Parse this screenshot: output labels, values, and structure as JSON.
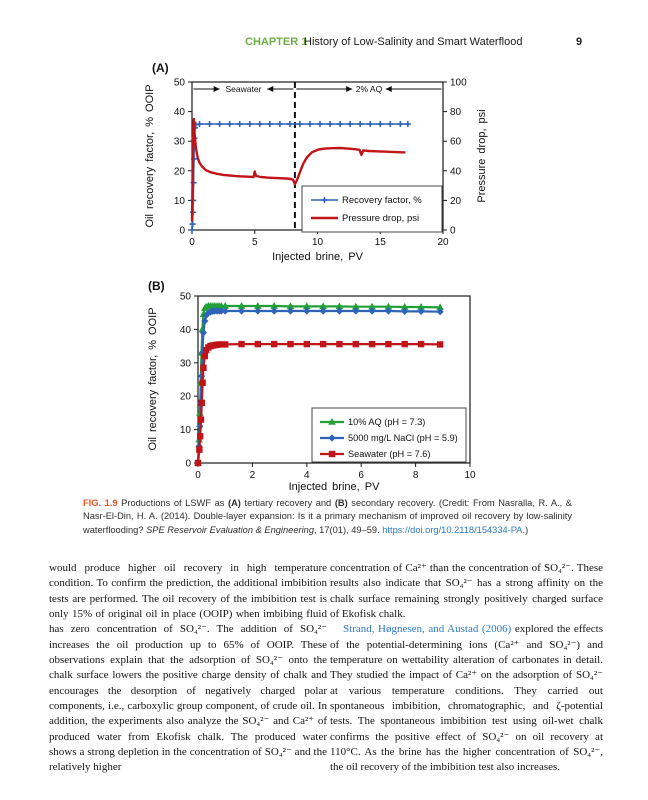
{
  "header": {
    "chapter_label": "CHAPTER 1",
    "chapter_title": "History of Low-Salinity and Smart Waterflood",
    "page_number": "9"
  },
  "colors": {
    "chapter_green": "#70AD47",
    "fig_orange": "#EB5424",
    "link_blue": "#2E7CC3",
    "chart_blue": "#2E63B8",
    "chart_red": "#C11419",
    "chart_green": "#21A038",
    "axis_black": "#1a1a1a"
  },
  "chart_data": [
    {
      "id": "chartA",
      "type": "line",
      "panel_label": "(A)",
      "xlabel": "Injected brine, PV",
      "ylabel_left": "Oil recovery factor, % OOIP",
      "ylabel_right": "Pressure drop, psi",
      "xlim": [
        0,
        20
      ],
      "xticks": [
        0,
        5,
        10,
        15,
        20
      ],
      "ylim_left": [
        0,
        50
      ],
      "yticks_left": [
        0,
        10,
        20,
        30,
        40,
        50
      ],
      "ylim_right": [
        0,
        100
      ],
      "yticks_right": [
        0,
        20,
        40,
        60,
        80,
        100
      ],
      "dashed_line_x": 8.2,
      "annotations": [
        {
          "label": "Seawater",
          "from": 0,
          "to": 8.2
        },
        {
          "label": "2% AQ",
          "from": 8.2,
          "to": 20
        }
      ],
      "series": [
        {
          "name": "Recovery factor, %",
          "color": "#2E63B8",
          "axis": "left",
          "marker": "plus",
          "width": 1.5,
          "points": [
            [
              0,
              0
            ],
            [
              0.05,
              2
            ],
            [
              0.08,
              6
            ],
            [
              0.1,
              10
            ],
            [
              0.13,
              16
            ],
            [
              0.16,
              24
            ],
            [
              0.2,
              31
            ],
            [
              0.25,
              34.5
            ],
            [
              0.3,
              35.6
            ],
            [
              0.6,
              35.8
            ],
            [
              1.4,
              35.8
            ],
            [
              2.2,
              35.8
            ],
            [
              3.0,
              35.8
            ],
            [
              3.8,
              35.8
            ],
            [
              4.6,
              35.8
            ],
            [
              5.4,
              35.8
            ],
            [
              6.2,
              35.8
            ],
            [
              7.0,
              35.8
            ],
            [
              7.8,
              35.8
            ],
            [
              8.6,
              35.8
            ],
            [
              9.4,
              35.8
            ],
            [
              10.2,
              35.8
            ],
            [
              11.0,
              35.8
            ],
            [
              11.8,
              35.8
            ],
            [
              12.6,
              35.8
            ],
            [
              13.4,
              35.8
            ],
            [
              14.2,
              35.8
            ],
            [
              15.0,
              35.8
            ],
            [
              15.8,
              35.8
            ],
            [
              16.6,
              35.8
            ],
            [
              17.2,
              35.8
            ]
          ]
        },
        {
          "name": "Pressure drop, psi",
          "color": "#C11419",
          "axis": "right",
          "marker": "none",
          "width": 2.4,
          "points": [
            [
              0,
              6
            ],
            [
              0.04,
              28
            ],
            [
              0.08,
              55
            ],
            [
              0.12,
              72
            ],
            [
              0.15,
              75
            ],
            [
              0.2,
              66
            ],
            [
              0.3,
              56
            ],
            [
              0.45,
              49
            ],
            [
              0.6,
              45.5
            ],
            [
              0.8,
              43
            ],
            [
              1.1,
              40.5
            ],
            [
              1.5,
              39
            ],
            [
              2,
              38
            ],
            [
              2.5,
              37.2
            ],
            [
              3,
              36.8
            ],
            [
              3.5,
              36.4
            ],
            [
              4,
              36.2
            ],
            [
              4.5,
              36
            ],
            [
              4.9,
              35.8
            ],
            [
              5,
              39.5
            ],
            [
              5.1,
              36.5
            ],
            [
              5.5,
              35.8
            ],
            [
              6,
              35.4
            ],
            [
              6.5,
              35.2
            ],
            [
              7,
              35
            ],
            [
              7.5,
              34.8
            ],
            [
              7.8,
              34.6
            ],
            [
              8.05,
              34
            ],
            [
              8.2,
              31
            ],
            [
              8.35,
              33.5
            ],
            [
              8.6,
              39
            ],
            [
              8.85,
              44.5
            ],
            [
              9.15,
              49
            ],
            [
              9.55,
              52.5
            ],
            [
              10.05,
              54.3
            ],
            [
              10.6,
              55
            ],
            [
              11.2,
              55.3
            ],
            [
              11.8,
              55.4
            ],
            [
              12.4,
              55
            ],
            [
              13,
              54.6
            ],
            [
              13.35,
              54.2
            ],
            [
              13.5,
              50.8
            ],
            [
              13.65,
              53.8
            ],
            [
              14.1,
              53.4
            ],
            [
              14.7,
              53.2
            ],
            [
              15.3,
              53
            ],
            [
              15.9,
              52.8
            ],
            [
              16.5,
              52.6
            ],
            [
              17,
              52.4
            ]
          ]
        }
      ]
    },
    {
      "id": "chartB",
      "type": "line",
      "panel_label": "(B)",
      "xlabel": "Injected brine, PV",
      "ylabel_left": "Oil recovery factor, % OOIP",
      "xlim": [
        0,
        10
      ],
      "xticks": [
        0,
        2,
        4,
        6,
        8,
        10
      ],
      "ylim_left": [
        0,
        50
      ],
      "yticks_left": [
        0,
        10,
        20,
        30,
        40,
        50
      ],
      "series": [
        {
          "name": "10% AQ (pH = 7.3)",
          "color": "#21A038",
          "axis": "left",
          "marker": "triangle",
          "width": 2.2,
          "points": [
            [
              0,
              0
            ],
            [
              0.04,
              7
            ],
            [
              0.07,
              15
            ],
            [
              0.1,
              24
            ],
            [
              0.13,
              33
            ],
            [
              0.16,
              40
            ],
            [
              0.2,
              44.5
            ],
            [
              0.25,
              46.3
            ],
            [
              0.3,
              46.8
            ],
            [
              0.38,
              47
            ],
            [
              0.46,
              47
            ],
            [
              0.54,
              47
            ],
            [
              0.62,
              47
            ],
            [
              0.7,
              47
            ],
            [
              0.78,
              47
            ],
            [
              0.86,
              47
            ],
            [
              1.0,
              47
            ],
            [
              1.6,
              47
            ],
            [
              2.2,
              47
            ],
            [
              2.8,
              47
            ],
            [
              3.4,
              46.9
            ],
            [
              4.0,
              46.9
            ],
            [
              4.6,
              46.9
            ],
            [
              5.2,
              46.9
            ],
            [
              5.8,
              46.8
            ],
            [
              6.4,
              46.8
            ],
            [
              7.0,
              46.8
            ],
            [
              7.6,
              46.7
            ],
            [
              8.2,
              46.7
            ],
            [
              8.9,
              46.6
            ]
          ]
        },
        {
          "name": "5000 mg/L NaCl (pH = 5.9)",
          "color": "#2E63B8",
          "axis": "left",
          "marker": "diamond",
          "width": 2.2,
          "points": [
            [
              0,
              0
            ],
            [
              0.04,
              5
            ],
            [
              0.07,
              11
            ],
            [
              0.1,
              18
            ],
            [
              0.13,
              26
            ],
            [
              0.16,
              33
            ],
            [
              0.2,
              39
            ],
            [
              0.25,
              42.5
            ],
            [
              0.3,
              44.2
            ],
            [
              0.38,
              44.9
            ],
            [
              0.46,
              45.2
            ],
            [
              0.54,
              45.4
            ],
            [
              0.62,
              45.5
            ],
            [
              0.7,
              45.5
            ],
            [
              0.78,
              45.5
            ],
            [
              0.86,
              45.5
            ],
            [
              1.0,
              45.5
            ],
            [
              1.6,
              45.5
            ],
            [
              2.2,
              45.5
            ],
            [
              2.8,
              45.5
            ],
            [
              3.4,
              45.5
            ],
            [
              4.0,
              45.5
            ],
            [
              4.6,
              45.5
            ],
            [
              5.2,
              45.5
            ],
            [
              5.8,
              45.5
            ],
            [
              6.4,
              45.5
            ],
            [
              7.0,
              45.5
            ],
            [
              7.6,
              45.4
            ],
            [
              8.2,
              45.4
            ],
            [
              8.9,
              45.3
            ]
          ]
        },
        {
          "name": "Seawater (pH = 7.6)",
          "color": "#C11419",
          "axis": "left",
          "marker": "square",
          "width": 2.2,
          "points": [
            [
              0,
              0
            ],
            [
              0.05,
              4
            ],
            [
              0.08,
              8
            ],
            [
              0.11,
              13
            ],
            [
              0.14,
              18
            ],
            [
              0.17,
              24
            ],
            [
              0.2,
              28.5
            ],
            [
              0.25,
              32
            ],
            [
              0.3,
              33.8
            ],
            [
              0.38,
              34.6
            ],
            [
              0.46,
              35
            ],
            [
              0.54,
              35.2
            ],
            [
              0.62,
              35.3
            ],
            [
              0.7,
              35.4
            ],
            [
              0.8,
              35.5
            ],
            [
              1.0,
              35.5
            ],
            [
              1.6,
              35.6
            ],
            [
              2.2,
              35.6
            ],
            [
              2.8,
              35.6
            ],
            [
              3.4,
              35.6
            ],
            [
              4.0,
              35.6
            ],
            [
              4.6,
              35.6
            ],
            [
              5.2,
              35.6
            ],
            [
              5.8,
              35.6
            ],
            [
              6.4,
              35.6
            ],
            [
              7.0,
              35.6
            ],
            [
              7.6,
              35.6
            ],
            [
              8.2,
              35.6
            ],
            [
              8.9,
              35.5
            ]
          ]
        }
      ]
    }
  ],
  "caption": {
    "segments": [
      {
        "text": "FIG. 1.9",
        "style": "fig-label"
      },
      {
        "text": "  Productions of LSWF as ",
        "style": ""
      },
      {
        "text": "(A)",
        "style": "bold"
      },
      {
        "text": " tertiary recovery and ",
        "style": ""
      },
      {
        "text": "(B)",
        "style": "bold"
      },
      {
        "text": " secondary recovery. (Credit: From Nasralla, R. A., & Nasr-El-Din, H. A. (2014). Double-layer expansion: Is it a primary mechanism of improved oil recovery by low-salinity waterflooding? ",
        "style": ""
      },
      {
        "text": "SPE Reservoir Evaluation & Engineering",
        "style": "italic"
      },
      {
        "text": ", 17(01), 49–59. ",
        "style": ""
      },
      {
        "text": "https://doi.org/10.2118/154334-PA",
        "style": "link"
      },
      {
        "text": ".)",
        "style": ""
      }
    ]
  },
  "body": {
    "left_column": [
      {
        "indent": false,
        "segments": [
          {
            "text": "would produce higher oil recovery in high temperature condition. To confirm the prediction, the additional imbibition tests are performed. The oil recovery of the imbibition test is only 15% of original oil in place (OOIP) when imbibing fluid has zero concentration of SO₄²⁻. The addition of SO₄²⁻ increases the oil production up to 65% of OOIP. These observations explain that the adsorption of SO₄²⁻ onto the chalk surface lowers the positive charge density of chalk and encourages the desorption of negatively charged polar components, i.e., carboxylic group component, of crude oil. In addition, the experiments also analyze the SO₄²⁻ and Ca²⁺ of produced water from Ekofisk chalk. The produced water shows a strong depletion in the concentration of SO₄²⁻ and the relatively higher",
            "style": ""
          }
        ]
      }
    ],
    "right_column": [
      {
        "indent": false,
        "segments": [
          {
            "text": "concentration of Ca²⁺ than the concentration of SO₄²⁻. These results also indicate that SO₄²⁻ has a strong affinity on the chalk surface remaining strongly positively charged surface of Ekofisk chalk.",
            "style": ""
          }
        ]
      },
      {
        "indent": true,
        "segments": [
          {
            "text": "Strand, Høgnesen, and Austad (2006)",
            "style": "link"
          },
          {
            "text": " explored the effects of the potential-determining ions (Ca²⁺ and SO₄²⁻) and temperature on wettability alteration of carbonates in detail. They studied the impact of Ca²⁺ on the adsorption of SO₄²⁻ at various temperature conditions. They carried out spontaneous imbibition, chromatographic, and ζ-potential tests. The spontaneous imbibition test using oil-wet chalk confirms the positive effect of SO₄²⁻ on oil recovery at 110°C. As the brine has the higher concentration of SO₄²⁻, the oil recovery of the imbibition test also increases.",
            "style": ""
          }
        ]
      }
    ]
  }
}
